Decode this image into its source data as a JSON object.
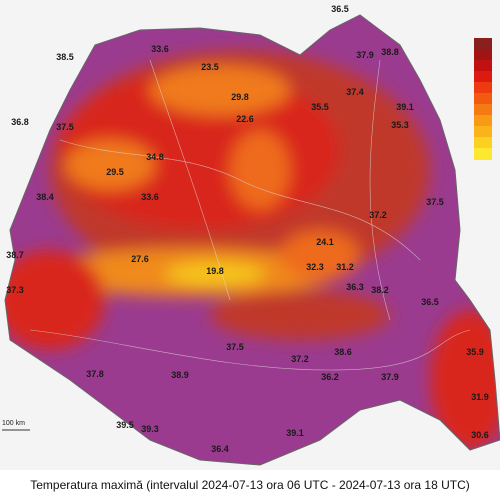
{
  "caption": "Temperatura maximă (intervalul 2024-07-13 ora 06 UTC - 2024-07-13 ora 18 UTC)",
  "scale_label": "100 km",
  "stations": [
    "36.5",
    "38.8",
    "37.9",
    "38.5",
    "33.6",
    "23.5",
    "29.8",
    "22.6",
    "35.5",
    "37.4",
    "39.1",
    "35.3",
    "36.8",
    "37.5",
    "29.5",
    "34.8",
    "33.6",
    "38.4",
    "37.2",
    "37.5",
    "38.7",
    "27.6",
    "19.8",
    "24.1",
    "32.3",
    "31.2",
    "36.3",
    "38.2",
    "37.3",
    "37.5",
    "37.2",
    "38.6",
    "36.5",
    "35.9",
    "37.9",
    "37.8",
    "38.9",
    "39.5",
    "39.3",
    "36.2",
    "39.1",
    "36.4",
    "30.6",
    "31.9"
  ]
}
